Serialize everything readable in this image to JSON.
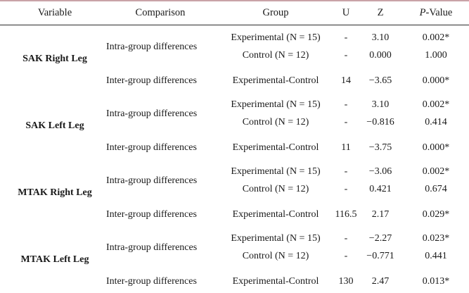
{
  "header": {
    "variable": "Variable",
    "comparison": "Comparison",
    "group": "Group",
    "u": "U",
    "z": "Z",
    "p_prefix": "P",
    "p_suffix": "-Value"
  },
  "sections": [
    {
      "variable": "SAK Right Leg",
      "intra_label": "Intra-group differences",
      "inter_label": "Inter-group differences",
      "exp_group": "Experimental (N = 15)",
      "ctrl_group": "Control (N = 12)",
      "inter_group": "Experimental-Control",
      "exp_u": "-",
      "exp_z": "3.10",
      "exp_p": "0.002*",
      "ctrl_u": "-",
      "ctrl_z": "0.000",
      "ctrl_p": "1.000",
      "inter_u": "14",
      "inter_z": "−3.65",
      "inter_p": "0.000*"
    },
    {
      "variable": "SAK Left Leg",
      "intra_label": "Intra-group differences",
      "inter_label": "Inter-group differences",
      "exp_group": "Experimental (N = 15)",
      "ctrl_group": "Control (N = 12)",
      "inter_group": "Experimental-Control",
      "exp_u": "-",
      "exp_z": "3.10",
      "exp_p": "0.002*",
      "ctrl_u": "-",
      "ctrl_z": "−0.816",
      "ctrl_p": "0.414",
      "inter_u": "11",
      "inter_z": "−3.75",
      "inter_p": "0.000*"
    },
    {
      "variable": "MTAK Right Leg",
      "intra_label": "Intra-group differences",
      "inter_label": "Inter-group differences",
      "exp_group": "Experimental (N = 15)",
      "ctrl_group": "Control (N = 12)",
      "inter_group": "Experimental-Control",
      "exp_u": "-",
      "exp_z": "−3.06",
      "exp_p": "0.002*",
      "ctrl_u": "-",
      "ctrl_z": "0.421",
      "ctrl_p": "0.674",
      "inter_u": "116.5",
      "inter_z": "2.17",
      "inter_p": "0.029*"
    },
    {
      "variable": "MTAK Left Leg",
      "intra_label": "Intra-group differences",
      "inter_label": "Inter-group differences",
      "exp_group": "Experimental (N = 15)",
      "ctrl_group": "Control (N = 12)",
      "inter_group": "Experimental-Control",
      "exp_u": "-",
      "exp_z": "−2.27",
      "exp_p": "0.023*",
      "ctrl_u": "-",
      "ctrl_z": "−0.771",
      "ctrl_p": "0.441",
      "inter_u": "130",
      "inter_z": "2.47",
      "inter_p": "0.013*"
    }
  ]
}
